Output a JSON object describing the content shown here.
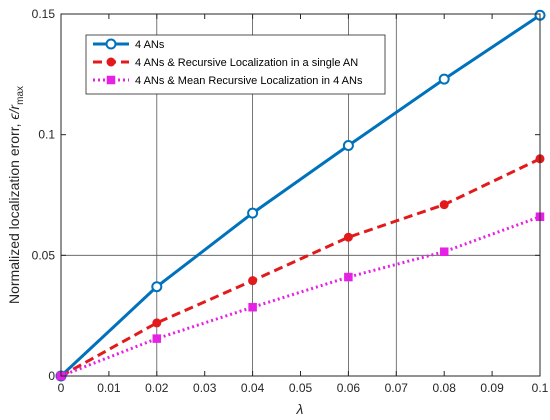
{
  "chart_data": {
    "type": "line",
    "xlabel": "λ",
    "ylabel_main": "Normalized localization erorr, ",
    "ylabel_symbol": "ϵ/r",
    "ylabel_sub": "max",
    "xlim": [
      0,
      0.1
    ],
    "ylim": [
      0,
      0.15
    ],
    "x_ticks": [
      0,
      0.01,
      0.02,
      0.03,
      0.04,
      0.05,
      0.06,
      0.07,
      0.08,
      0.09,
      0.1
    ],
    "x_tick_labels": [
      "0",
      "0.01",
      "0.02",
      "0.03",
      "0.04",
      "0.05",
      "0.06",
      "0.07",
      "0.08",
      "0.09",
      "0.1"
    ],
    "y_ticks": [
      0,
      0.05,
      0.1,
      0.15
    ],
    "y_tick_labels": [
      "0",
      "0.05",
      "0.1",
      "0.15"
    ],
    "grid_x": [
      0.02,
      0.04,
      0.06,
      0.07
    ],
    "grid_y": [
      0.05
    ],
    "legend_position": "top-left",
    "series": [
      {
        "name": "4 ANs",
        "color": "#0072BD",
        "dash": "solid",
        "marker": "circle-open",
        "x": [
          0,
          0.02,
          0.04,
          0.06,
          0.08,
          0.1
        ],
        "y": [
          0,
          0.037,
          0.0675,
          0.0955,
          0.123,
          0.1495
        ]
      },
      {
        "name": "4 ANs & Recursive Localization in a single AN",
        "color": "#E31A1C",
        "dash": "dashed",
        "marker": "circle-filled",
        "x": [
          0,
          0.02,
          0.04,
          0.06,
          0.08,
          0.1
        ],
        "y": [
          0,
          0.022,
          0.0395,
          0.0575,
          0.071,
          0.09
        ]
      },
      {
        "name": "4 ANs & Mean Recursive Localization in 4 ANs",
        "color": "#E621E6",
        "dash": "dotted",
        "marker": "square-filled",
        "x": [
          0,
          0.02,
          0.04,
          0.06,
          0.08,
          0.1
        ],
        "y": [
          0,
          0.0155,
          0.0285,
          0.041,
          0.0515,
          0.066
        ]
      }
    ]
  }
}
